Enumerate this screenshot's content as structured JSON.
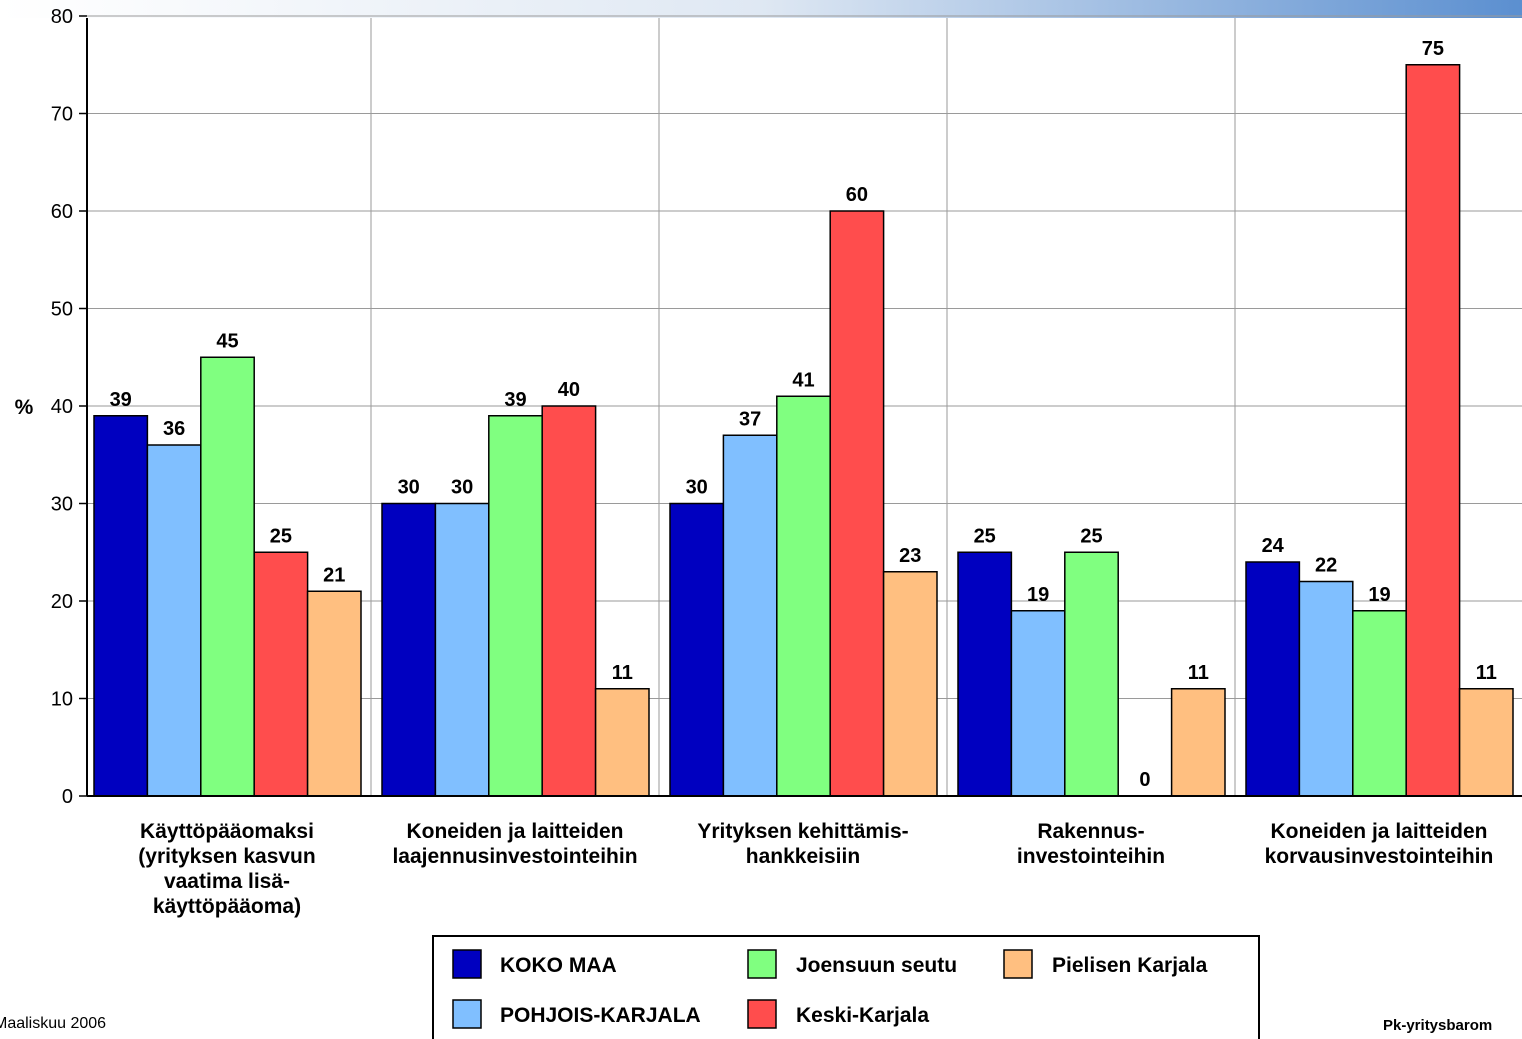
{
  "chart_data": {
    "type": "bar",
    "ylabel": "%",
    "ylim": [
      0,
      80
    ],
    "yticks": [
      0,
      10,
      20,
      30,
      40,
      50,
      60,
      70,
      80
    ],
    "grid": true,
    "legend_position": "bottom-center",
    "categories": [
      [
        "Käyttöpääomaksi",
        "(yrityksen kasvun",
        "vaatima lisä-",
        "käyttöpääoma)"
      ],
      [
        "Koneiden ja laitteiden",
        "laajennusinvestointeihin"
      ],
      [
        "Yrityksen kehittämis-",
        "hankkeisiin"
      ],
      [
        "Rakennus-",
        "investointeihin"
      ],
      [
        "Koneiden ja laitteiden",
        "korvausinvestointeihin"
      ]
    ],
    "series": [
      {
        "name": "KOKO MAA",
        "color": "#0000C0",
        "values": [
          39,
          30,
          30,
          25,
          24
        ]
      },
      {
        "name": "POHJOIS-KARJALA",
        "color": "#80BFFF",
        "values": [
          36,
          30,
          37,
          19,
          22
        ]
      },
      {
        "name": "Joensuun seutu",
        "color": "#80FF80",
        "values": [
          45,
          39,
          41,
          25,
          19
        ]
      },
      {
        "name": "Keski-Karjala",
        "color": "#FF4D4D",
        "values": [
          25,
          40,
          60,
          0,
          75
        ]
      },
      {
        "name": "Pielisen Karjala",
        "color": "#FFBF80",
        "values": [
          21,
          11,
          23,
          11,
          11
        ]
      }
    ]
  },
  "footer": {
    "left": "Maaliskuu 2006",
    "right": "Pk-yritysbarom"
  }
}
